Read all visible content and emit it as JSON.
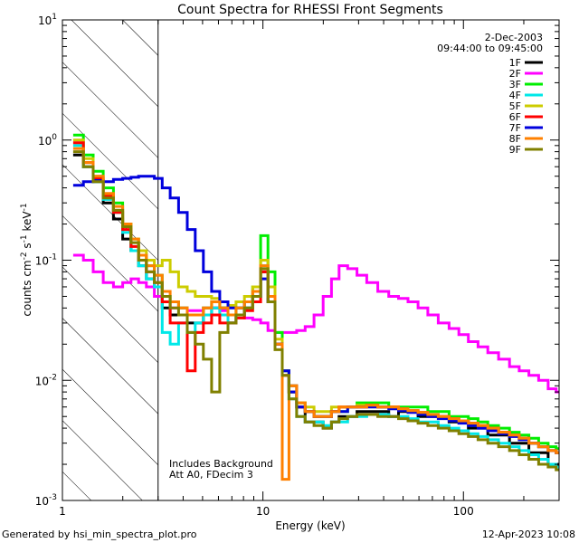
{
  "chart_data": {
    "type": "line",
    "title": "Count Spectra for RHESSI Front Segments",
    "xlabel": "Energy (keV)",
    "ylabel_parts": [
      "counts cm",
      "-2",
      " s",
      "-1",
      " keV",
      "-1"
    ],
    "x_scale": "log",
    "y_scale": "log",
    "xlim": [
      1,
      300
    ],
    "ylim": [
      0.001,
      10
    ],
    "x_ticks": [
      {
        "value": 1,
        "label": "1"
      },
      {
        "value": 10,
        "label": "10"
      },
      {
        "value": 100,
        "label": "100"
      }
    ],
    "y_ticks": [
      {
        "value": 0.001,
        "base": "10",
        "exp": "-3"
      },
      {
        "value": 0.01,
        "base": "10",
        "exp": "-2"
      },
      {
        "value": 0.1,
        "base": "10",
        "exp": "-1"
      },
      {
        "value": 1,
        "base": "10",
        "exp": "0"
      },
      {
        "value": 10,
        "base": "10",
        "exp": "1"
      }
    ],
    "date": "2-Dec-2003",
    "time_range": "09:44:00 to 09:45:00",
    "excluded_region": [
      1,
      3
    ],
    "annotations": [
      "Includes Background",
      "Att A0, FDecim 3"
    ],
    "series": [
      {
        "name": "1F",
        "color": "#000000",
        "x": [
          1.2,
          1.35,
          1.5,
          1.7,
          1.9,
          2.1,
          2.3,
          2.5,
          2.75,
          3,
          3.3,
          3.6,
          4,
          4.4,
          4.8,
          5.3,
          5.8,
          6.4,
          7,
          7.7,
          8.5,
          9.3,
          10.2,
          11,
          12,
          13,
          14,
          15.5,
          17,
          19,
          21,
          23,
          25,
          28,
          31,
          35,
          40,
          45,
          50,
          56,
          63,
          70,
          80,
          90,
          100,
          112,
          125,
          140,
          160,
          180,
          200,
          225,
          250,
          280,
          300
        ],
        "y": [
          0.75,
          0.6,
          0.45,
          0.3,
          0.22,
          0.15,
          0.12,
          0.09,
          0.07,
          0.06,
          0.04,
          0.035,
          0.035,
          0.03,
          0.03,
          0.035,
          0.04,
          0.04,
          0.03,
          0.035,
          0.04,
          0.05,
          0.08,
          0.05,
          0.02,
          0.012,
          0.009,
          0.006,
          0.0045,
          0.0045,
          0.004,
          0.0045,
          0.005,
          0.005,
          0.0055,
          0.0055,
          0.0055,
          0.005,
          0.0055,
          0.0055,
          0.005,
          0.005,
          0.005,
          0.0045,
          0.0045,
          0.004,
          0.004,
          0.0035,
          0.0035,
          0.003,
          0.003,
          0.0025,
          0.0025,
          0.002,
          0.002
        ]
      },
      {
        "name": "2F",
        "color": "#ff00ff",
        "x": [
          1.2,
          1.35,
          1.5,
          1.7,
          1.9,
          2.1,
          2.3,
          2.5,
          2.75,
          3,
          3.3,
          3.6,
          4,
          4.4,
          4.8,
          5.3,
          5.8,
          6.4,
          7,
          7.7,
          8.5,
          9.3,
          10.2,
          11,
          12,
          13,
          14,
          15.5,
          17,
          19,
          21,
          23,
          25,
          28,
          31,
          35,
          40,
          45,
          50,
          56,
          63,
          70,
          80,
          90,
          100,
          112,
          125,
          140,
          160,
          180,
          200,
          225,
          250,
          280,
          300
        ],
        "y": [
          0.11,
          0.1,
          0.08,
          0.065,
          0.06,
          0.065,
          0.07,
          0.065,
          0.06,
          0.05,
          0.045,
          0.04,
          0.04,
          0.038,
          0.038,
          0.04,
          0.04,
          0.038,
          0.035,
          0.035,
          0.033,
          0.032,
          0.03,
          0.026,
          0.025,
          0.025,
          0.025,
          0.026,
          0.028,
          0.035,
          0.05,
          0.07,
          0.09,
          0.085,
          0.075,
          0.065,
          0.055,
          0.05,
          0.048,
          0.045,
          0.04,
          0.035,
          0.03,
          0.027,
          0.024,
          0.021,
          0.019,
          0.017,
          0.015,
          0.013,
          0.012,
          0.011,
          0.01,
          0.0085,
          0.008
        ]
      },
      {
        "name": "3F",
        "color": "#00ee00",
        "x": [
          1.2,
          1.35,
          1.5,
          1.7,
          1.9,
          2.1,
          2.3,
          2.5,
          2.75,
          3,
          3.3,
          3.6,
          4,
          4.4,
          4.8,
          5.3,
          5.8,
          6.4,
          7,
          7.7,
          8.5,
          9.3,
          10.2,
          11,
          12,
          13,
          14,
          15.5,
          17,
          19,
          21,
          23,
          25,
          28,
          31,
          35,
          40,
          45,
          50,
          56,
          63,
          70,
          80,
          90,
          100,
          112,
          125,
          140,
          160,
          180,
          200,
          225,
          250,
          280,
          300
        ],
        "y": [
          1.1,
          0.75,
          0.55,
          0.4,
          0.3,
          0.2,
          0.15,
          0.11,
          0.09,
          0.075,
          0.05,
          0.045,
          0.04,
          0.035,
          0.035,
          0.04,
          0.045,
          0.04,
          0.035,
          0.04,
          0.045,
          0.06,
          0.16,
          0.08,
          0.025,
          0.012,
          0.008,
          0.0065,
          0.0055,
          0.005,
          0.005,
          0.0055,
          0.0055,
          0.006,
          0.0065,
          0.0065,
          0.0065,
          0.006,
          0.006,
          0.006,
          0.006,
          0.0055,
          0.0055,
          0.005,
          0.005,
          0.0048,
          0.0045,
          0.0042,
          0.004,
          0.0037,
          0.0035,
          0.0033,
          0.003,
          0.0028,
          0.0027
        ]
      },
      {
        "name": "4F",
        "color": "#00e8e8",
        "x": [
          1.2,
          1.35,
          1.5,
          1.7,
          1.9,
          2.1,
          2.3,
          2.5,
          2.75,
          3,
          3.3,
          3.6,
          4,
          4.4,
          4.8,
          5.3,
          5.8,
          6.4,
          7,
          7.7,
          8.5,
          9.3,
          10.2,
          11,
          12,
          13,
          14,
          15.5,
          17,
          19,
          21,
          23,
          25,
          28,
          31,
          35,
          40,
          45,
          50,
          56,
          63,
          70,
          80,
          90,
          100,
          112,
          125,
          140,
          160,
          180,
          200,
          225,
          250,
          280,
          300
        ],
        "y": [
          0.9,
          0.6,
          0.45,
          0.32,
          0.25,
          0.17,
          0.12,
          0.09,
          0.07,
          0.06,
          0.025,
          0.02,
          0.03,
          0.025,
          0.03,
          0.035,
          0.04,
          0.035,
          0.03,
          0.035,
          0.04,
          0.05,
          0.09,
          0.05,
          0.02,
          0.012,
          0.007,
          0.005,
          0.0045,
          0.0045,
          0.0042,
          0.0045,
          0.0045,
          0.005,
          0.005,
          0.0052,
          0.0052,
          0.005,
          0.005,
          0.0048,
          0.0045,
          0.0045,
          0.0042,
          0.004,
          0.0038,
          0.0036,
          0.0034,
          0.0032,
          0.003,
          0.0028,
          0.0026,
          0.0024,
          0.0022,
          0.002,
          0.0019
        ]
      },
      {
        "name": "5F",
        "color": "#cccc00",
        "x": [
          1.2,
          1.35,
          1.5,
          1.7,
          1.9,
          2.1,
          2.3,
          2.5,
          2.75,
          3,
          3.3,
          3.6,
          4,
          4.4,
          4.8,
          5.3,
          5.8,
          6.4,
          7,
          7.7,
          8.5,
          9.3,
          10.2,
          11,
          12,
          13,
          14,
          15.5,
          17,
          19,
          21,
          23,
          25,
          28,
          31,
          35,
          40,
          45,
          50,
          56,
          63,
          70,
          80,
          90,
          100,
          112,
          125,
          140,
          160,
          180,
          200,
          225,
          250,
          280,
          300
        ],
        "y": [
          1.0,
          0.7,
          0.5,
          0.35,
          0.26,
          0.2,
          0.15,
          0.12,
          0.1,
          0.09,
          0.1,
          0.08,
          0.06,
          0.055,
          0.05,
          0.05,
          0.048,
          0.045,
          0.042,
          0.045,
          0.05,
          0.06,
          0.1,
          0.06,
          0.022,
          0.012,
          0.008,
          0.0065,
          0.006,
          0.0055,
          0.0055,
          0.006,
          0.006,
          0.006,
          0.0062,
          0.0062,
          0.006,
          0.006,
          0.0058,
          0.0056,
          0.0054,
          0.0052,
          0.005,
          0.0048,
          0.0046,
          0.0044,
          0.0042,
          0.004,
          0.0037,
          0.0035,
          0.0033,
          0.003,
          0.0028,
          0.0026,
          0.0025
        ]
      },
      {
        "name": "6F",
        "color": "#ff0000",
        "x": [
          1.2,
          1.35,
          1.5,
          1.7,
          1.9,
          2.1,
          2.3,
          2.5,
          2.75,
          3,
          3.3,
          3.6,
          4,
          4.4,
          4.8,
          5.3,
          5.8,
          6.4,
          7,
          7.7,
          8.5,
          9.3,
          10.2,
          11,
          12,
          13,
          14,
          15.5,
          17,
          19,
          21,
          23,
          25,
          28,
          31,
          35,
          40,
          45,
          50,
          56,
          63,
          70,
          80,
          90,
          100,
          112,
          125,
          140,
          160,
          180,
          200,
          225,
          250,
          280,
          300
        ],
        "y": [
          0.95,
          0.65,
          0.48,
          0.34,
          0.25,
          0.18,
          0.13,
          0.1,
          0.08,
          0.065,
          0.045,
          0.03,
          0.03,
          0.012,
          0.025,
          0.03,
          0.035,
          0.03,
          0.03,
          0.033,
          0.038,
          0.045,
          0.08,
          0.045,
          0.02,
          0.011,
          0.008,
          0.006,
          0.0055,
          0.005,
          0.005,
          0.0055,
          0.006,
          0.006,
          0.006,
          0.0062,
          0.006,
          0.006,
          0.0058,
          0.0056,
          0.0054,
          0.0052,
          0.005,
          0.0048,
          0.0046,
          0.0044,
          0.0042,
          0.004,
          0.0037,
          0.0035,
          0.0033,
          0.003,
          0.0028,
          0.0026,
          0.0025
        ]
      },
      {
        "name": "7F",
        "color": "#0000dd",
        "x": [
          1.2,
          1.35,
          1.5,
          1.7,
          1.9,
          2.1,
          2.3,
          2.5,
          2.75,
          3,
          3.3,
          3.6,
          4,
          4.4,
          4.8,
          5.3,
          5.8,
          6.4,
          7,
          7.7,
          8.5,
          9.3,
          10.2,
          11,
          12,
          13,
          14,
          15.5,
          17,
          19,
          21,
          23,
          25,
          28,
          31,
          35,
          40,
          45,
          50,
          56,
          63,
          70,
          80,
          90,
          100,
          112,
          125,
          140,
          160,
          180,
          200,
          225,
          250,
          280,
          300
        ],
        "y": [
          0.42,
          0.45,
          0.46,
          0.45,
          0.47,
          0.48,
          0.49,
          0.5,
          0.5,
          0.48,
          0.4,
          0.33,
          0.25,
          0.18,
          0.12,
          0.08,
          0.055,
          0.045,
          0.04,
          0.04,
          0.045,
          0.05,
          0.07,
          0.045,
          0.02,
          0.012,
          0.008,
          0.006,
          0.0055,
          0.005,
          0.005,
          0.0055,
          0.0055,
          0.006,
          0.006,
          0.006,
          0.006,
          0.0058,
          0.0056,
          0.0054,
          0.0052,
          0.005,
          0.0048,
          0.0046,
          0.0044,
          0.0042,
          0.004,
          0.0038,
          0.0036,
          0.0034,
          0.0032,
          0.003,
          0.0028,
          0.0026,
          0.0025
        ]
      },
      {
        "name": "8F",
        "color": "#ff8000",
        "x": [
          1.2,
          1.35,
          1.5,
          1.7,
          1.9,
          2.1,
          2.3,
          2.5,
          2.75,
          3,
          3.3,
          3.6,
          4,
          4.4,
          4.8,
          5.3,
          5.8,
          6.4,
          7,
          7.7,
          8.5,
          9.3,
          10.2,
          11,
          12,
          13,
          14,
          15.5,
          17,
          19,
          21,
          23,
          25,
          28,
          31,
          35,
          40,
          45,
          50,
          56,
          63,
          70,
          80,
          90,
          100,
          112,
          125,
          140,
          160,
          180,
          200,
          225,
          250,
          280,
          300
        ],
        "y": [
          0.85,
          0.65,
          0.5,
          0.36,
          0.28,
          0.2,
          0.15,
          0.11,
          0.09,
          0.075,
          0.055,
          0.045,
          0.04,
          0.035,
          0.035,
          0.04,
          0.045,
          0.04,
          0.035,
          0.04,
          0.045,
          0.055,
          0.09,
          0.05,
          0.02,
          0.0015,
          0.009,
          0.0065,
          0.0055,
          0.005,
          0.005,
          0.0055,
          0.006,
          0.006,
          0.006,
          0.0062,
          0.006,
          0.006,
          0.0058,
          0.0056,
          0.0054,
          0.0052,
          0.005,
          0.0048,
          0.0046,
          0.0044,
          0.0042,
          0.004,
          0.0037,
          0.0035,
          0.0033,
          0.003,
          0.0028,
          0.0026,
          0.0025
        ]
      },
      {
        "name": "9F",
        "color": "#808000",
        "x": [
          1.2,
          1.35,
          1.5,
          1.7,
          1.9,
          2.1,
          2.3,
          2.5,
          2.75,
          3,
          3.3,
          3.6,
          4,
          4.4,
          4.8,
          5.3,
          5.8,
          6.4,
          7,
          7.7,
          8.5,
          9.3,
          10.2,
          11,
          12,
          13,
          14,
          15.5,
          17,
          19,
          21,
          23,
          25,
          28,
          31,
          35,
          40,
          45,
          50,
          56,
          63,
          70,
          80,
          90,
          100,
          112,
          125,
          140,
          160,
          180,
          200,
          225,
          250,
          280,
          300
        ],
        "y": [
          0.8,
          0.6,
          0.45,
          0.33,
          0.26,
          0.19,
          0.14,
          0.1,
          0.08,
          0.065,
          0.05,
          0.04,
          0.035,
          0.025,
          0.02,
          0.015,
          0.008,
          0.025,
          0.03,
          0.035,
          0.04,
          0.05,
          0.085,
          0.045,
          0.018,
          0.011,
          0.007,
          0.005,
          0.0045,
          0.0042,
          0.004,
          0.0045,
          0.0048,
          0.005,
          0.0052,
          0.0052,
          0.005,
          0.005,
          0.0048,
          0.0046,
          0.0044,
          0.0042,
          0.004,
          0.0038,
          0.0036,
          0.0034,
          0.0032,
          0.003,
          0.0028,
          0.0026,
          0.0024,
          0.0022,
          0.002,
          0.0019,
          0.0018
        ]
      }
    ]
  },
  "footer": {
    "left": "Generated by hsi_min_spectra_plot.pro",
    "right": "12-Apr-2023 10:08"
  }
}
